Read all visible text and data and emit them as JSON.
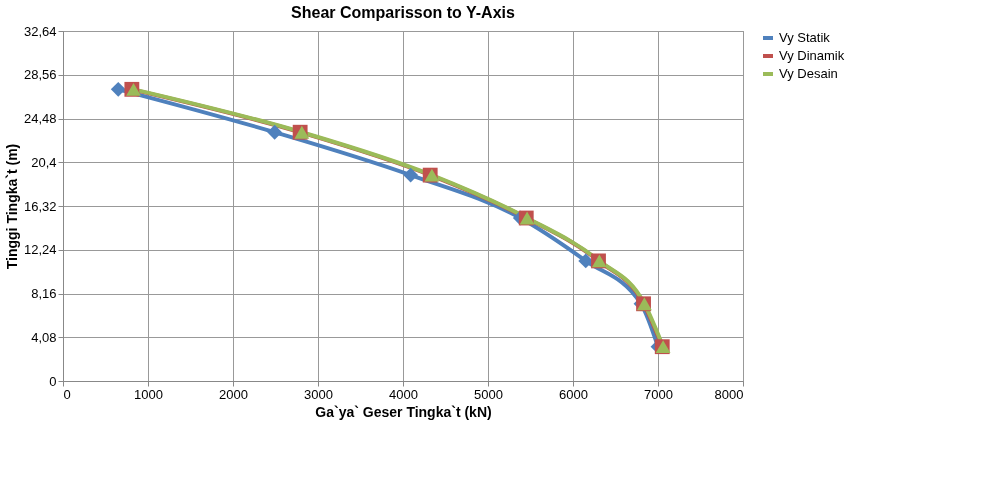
{
  "chart_data": {
    "type": "line",
    "title": "Shear Comparisson to Y-Axis",
    "xlabel": "Ga`ya` Geser Tingka`t (kN)",
    "ylabel": "Tinggi Tingka`t (m)",
    "xlim": [
      0,
      8000
    ],
    "xticks": [
      0,
      1000,
      2000,
      3000,
      4000,
      5000,
      6000,
      7000,
      8000
    ],
    "ylim": [
      0,
      32.64
    ],
    "yticks": [
      {
        "value": 0,
        "label": "0"
      },
      {
        "value": 4.08,
        "label": "4,08"
      },
      {
        "value": 8.16,
        "label": "8,16"
      },
      {
        "value": 12.24,
        "label": "12,24"
      },
      {
        "value": 16.32,
        "label": "16,32"
      },
      {
        "value": 20.4,
        "label": "20,4"
      },
      {
        "value": 24.48,
        "label": "24,48"
      },
      {
        "value": 28.56,
        "label": "28,56"
      },
      {
        "value": 32.64,
        "label": "32,64"
      }
    ],
    "grid": true,
    "legend": "right",
    "series": [
      {
        "name": "Vy Statik",
        "color": "#4f81bd",
        "marker": "diamond",
        "x": [
          650,
          2490,
          4090,
          5380,
          6150,
          6800,
          7000
        ],
        "values": [
          27.2,
          23.2,
          19.2,
          15.2,
          11.2,
          7.2,
          3.2
        ]
      },
      {
        "name": "Vy Dinamik",
        "color": "#c0504d",
        "marker": "square",
        "x": [
          810,
          2790,
          4320,
          5450,
          6300,
          6830,
          7050
        ],
        "values": [
          27.2,
          23.2,
          19.2,
          15.2,
          11.2,
          7.2,
          3.2
        ]
      },
      {
        "name": "Vy Desain",
        "color": "#9bbb59",
        "marker": "triangle",
        "x": [
          830,
          2810,
          4340,
          5460,
          6310,
          6840,
          7060
        ],
        "values": [
          27.2,
          23.2,
          19.2,
          15.2,
          11.2,
          7.2,
          3.2
        ]
      }
    ]
  }
}
